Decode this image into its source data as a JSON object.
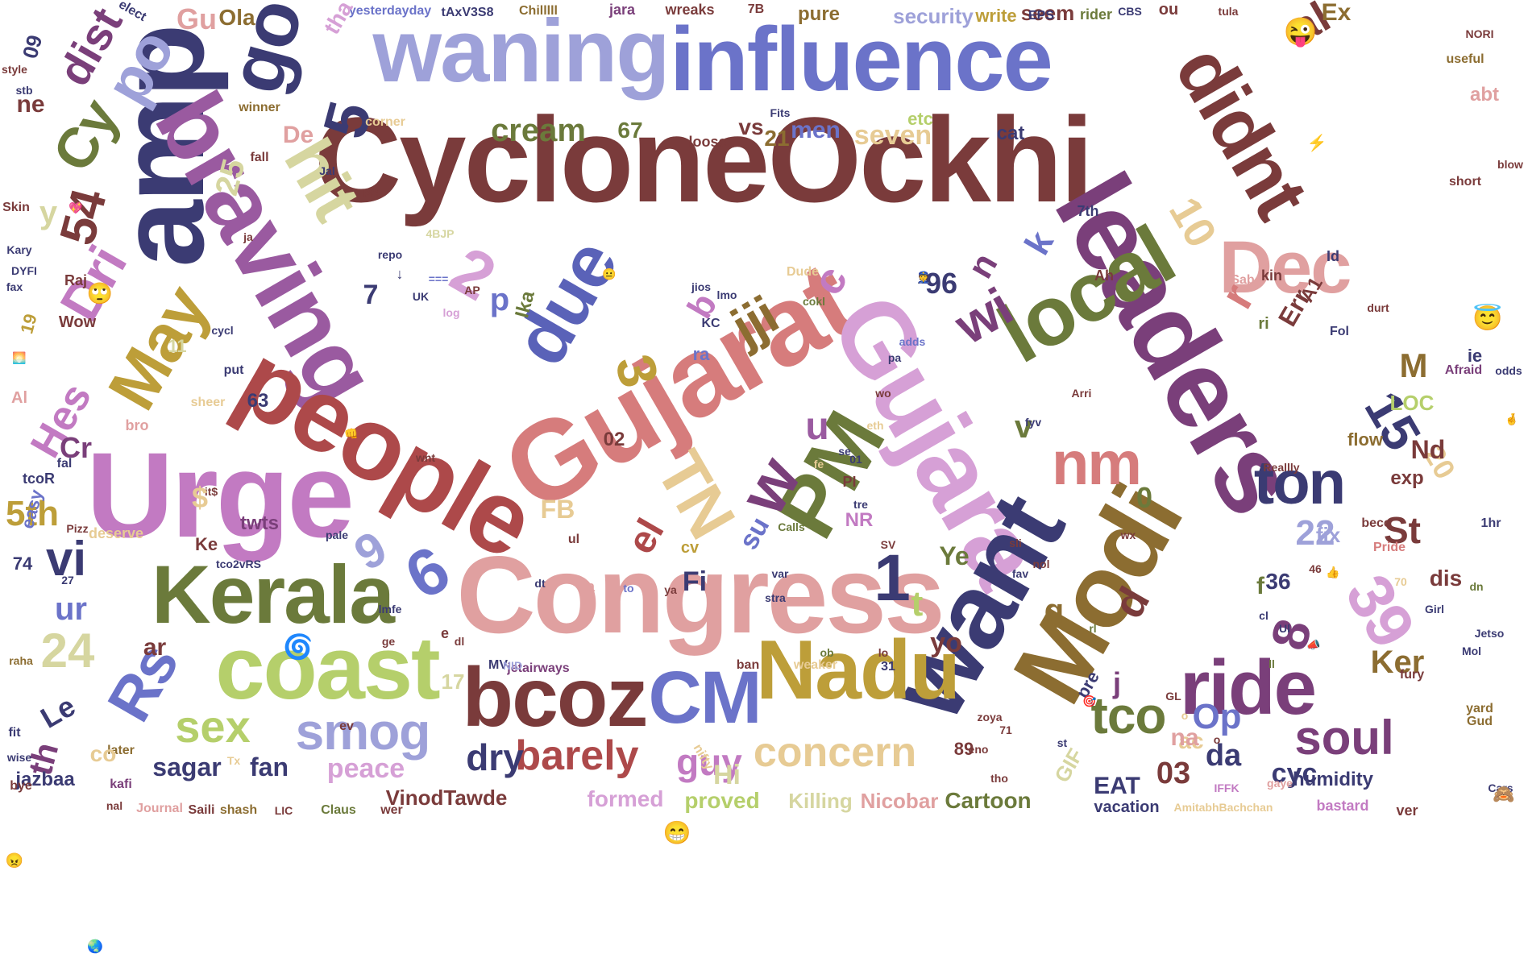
{
  "colors": {
    "maroon": "#7a3b3b",
    "navy": "#3b3b73",
    "slate": "#6b73c9",
    "lavender": "#9ea1d9",
    "rose": "#d67c7c",
    "pink": "#e0a0a0",
    "orchid": "#c27ac2",
    "violet": "#9a5aa0",
    "plum": "#7a3f7a",
    "olive": "#6b7a3b",
    "sage": "#b5cf6b",
    "mustard": "#bd9e39",
    "sand": "#e7cb94",
    "khaki": "#d6d6a0",
    "brown": "#8c6d31",
    "lilac": "#d6a0d6",
    "red": "#ad494a",
    "blue": "#5a62b8"
  },
  "words": [
    {
      "text": "CycloneOckhi",
      "color": "maroon"
    },
    {
      "text": "influence",
      "color": "slate"
    },
    {
      "text": "waning",
      "color": "lavender"
    },
    {
      "text": "amp",
      "color": "navy"
    },
    {
      "text": "go",
      "color": "navy"
    },
    {
      "text": "braving",
      "color": "violet"
    },
    {
      "text": "people",
      "color": "red"
    },
    {
      "text": "Gujarat",
      "color": "rose"
    },
    {
      "text": "Gujara",
      "color": "lilac"
    },
    {
      "text": "leaders",
      "color": "plum"
    },
    {
      "text": "local",
      "color": "olive"
    },
    {
      "text": "didnt",
      "color": "maroon"
    },
    {
      "text": "Congress",
      "color": "pink"
    },
    {
      "text": "Urge",
      "color": "orchid"
    },
    {
      "text": "Kerala",
      "color": "olive"
    },
    {
      "text": "coast",
      "color": "sage"
    },
    {
      "text": "Modi",
      "color": "brown"
    },
    {
      "text": "want",
      "color": "navy"
    },
    {
      "text": "Nadu",
      "color": "mustard"
    },
    {
      "text": "bcoz",
      "color": "maroon"
    },
    {
      "text": "CM",
      "color": "slate"
    },
    {
      "text": "ride",
      "color": "plum"
    },
    {
      "text": "PM",
      "color": "olive"
    },
    {
      "text": "TN",
      "color": "sand"
    },
    {
      "text": "due",
      "color": "blue"
    },
    {
      "text": "Dec",
      "color": "pink"
    },
    {
      "text": "May",
      "color": "mustard"
    },
    {
      "text": "hit",
      "color": "khaki"
    },
    {
      "text": "po",
      "color": "lavender"
    },
    {
      "text": "Cy",
      "color": "olive"
    },
    {
      "text": "dist",
      "color": "plum"
    },
    {
      "text": "Dri",
      "color": "orchid"
    },
    {
      "text": "Rs",
      "color": "slate"
    },
    {
      "text": "smog",
      "color": "lavender"
    },
    {
      "text": "sex",
      "color": "sage"
    },
    {
      "text": "barely",
      "color": "red"
    },
    {
      "text": "dry",
      "color": "navy"
    },
    {
      "text": "concern",
      "color": "sand"
    },
    {
      "text": "guy",
      "color": "orchid"
    },
    {
      "text": "ton",
      "color": "navy"
    },
    {
      "text": "nm",
      "color": "rose"
    },
    {
      "text": "soul",
      "color": "plum"
    },
    {
      "text": "tco",
      "color": "olive"
    },
    {
      "text": "cream",
      "color": "olive"
    },
    {
      "text": "seven",
      "color": "sand"
    },
    {
      "text": "men",
      "color": "slate"
    },
    {
      "text": "security",
      "color": "lavender"
    },
    {
      "text": "pure",
      "color": "brown"
    },
    {
      "text": "write",
      "color": "mustard"
    },
    {
      "text": "seem",
      "color": "maroon"
    },
    {
      "text": "al",
      "color": "maroon"
    },
    {
      "text": "Ex",
      "color": "brown"
    },
    {
      "text": "wreaks",
      "color": "maroon"
    },
    {
      "text": "jara",
      "color": "plum"
    },
    {
      "text": "yesterdayday",
      "color": "slate"
    },
    {
      "text": "tAxV3S8",
      "color": "navy"
    },
    {
      "text": "Chilllll",
      "color": "brown"
    },
    {
      "text": "Gu",
      "color": "pink"
    },
    {
      "text": "Ola",
      "color": "brown"
    },
    {
      "text": "tha",
      "color": "lilac"
    },
    {
      "text": "elect",
      "color": "navy"
    },
    {
      "text": "5",
      "color": "navy"
    },
    {
      "text": "2",
      "color": "lilac"
    },
    {
      "text": "p",
      "color": "slate"
    },
    {
      "text": "Ika",
      "color": "olive"
    },
    {
      "text": "3",
      "color": "mustard"
    },
    {
      "text": "jji",
      "color": "brown"
    },
    {
      "text": "c",
      "color": "orchid"
    },
    {
      "text": "r",
      "color": "rose"
    },
    {
      "text": "wi",
      "color": "plum"
    },
    {
      "text": "96",
      "color": "navy"
    },
    {
      "text": "10",
      "color": "sand"
    },
    {
      "text": "54",
      "color": "maroon"
    },
    {
      "text": "25",
      "color": "khaki"
    },
    {
      "text": "y",
      "color": "khaki"
    },
    {
      "text": "Hes",
      "color": "orchid"
    },
    {
      "text": "vi",
      "color": "navy"
    },
    {
      "text": "5th",
      "color": "mustard"
    },
    {
      "text": "ur",
      "color": "slate"
    },
    {
      "text": "24",
      "color": "khaki"
    },
    {
      "text": "ar",
      "color": "maroon"
    },
    {
      "text": "Le",
      "color": "navy"
    },
    {
      "text": "th",
      "color": "plum"
    },
    {
      "text": "sagar",
      "color": "navy"
    },
    {
      "text": "fan",
      "color": "navy"
    },
    {
      "text": "peace",
      "color": "lilac"
    },
    {
      "text": "VinodTawde",
      "color": "maroon"
    },
    {
      "text": "formed",
      "color": "lilac"
    },
    {
      "text": "proved",
      "color": "sage"
    },
    {
      "text": "Killing",
      "color": "khaki"
    },
    {
      "text": "Nicobar",
      "color": "pink"
    },
    {
      "text": "Cartoon",
      "color": "olive"
    },
    {
      "text": "EAT",
      "color": "navy"
    },
    {
      "text": "03",
      "color": "maroon"
    },
    {
      "text": "da",
      "color": "navy"
    },
    {
      "text": "cyc",
      "color": "navy"
    },
    {
      "text": "Op",
      "color": "slate"
    },
    {
      "text": "humidity",
      "color": "navy"
    },
    {
      "text": "vacation",
      "color": "navy"
    },
    {
      "text": "bastard",
      "color": "orchid"
    },
    {
      "text": "ver",
      "color": "maroon"
    },
    {
      "text": "AmitabhBachchan",
      "color": "sand"
    },
    {
      "text": "Ker",
      "color": "brown"
    },
    {
      "text": "St",
      "color": "maroon"
    },
    {
      "text": "22",
      "color": "lavender"
    },
    {
      "text": "15",
      "color": "navy"
    },
    {
      "text": "20",
      "color": "sand"
    },
    {
      "text": "39",
      "color": "lilac"
    },
    {
      "text": "8",
      "color": "plum"
    },
    {
      "text": "6",
      "color": "slate"
    },
    {
      "text": "9",
      "color": "lavender"
    },
    {
      "text": "1",
      "color": "navy"
    },
    {
      "text": "t",
      "color": "sage"
    },
    {
      "text": "w",
      "color": "plum"
    },
    {
      "text": "u",
      "color": "violet"
    },
    {
      "text": "v",
      "color": "olive"
    },
    {
      "text": "o",
      "color": "sand"
    },
    {
      "text": "g",
      "color": "brown"
    },
    {
      "text": "d",
      "color": "maroon"
    },
    {
      "text": "j",
      "color": "plum"
    },
    {
      "text": "b",
      "color": "orchid"
    },
    {
      "text": "n",
      "color": "plum"
    },
    {
      "text": "k",
      "color": "slate"
    },
    {
      "text": "el",
      "color": "red"
    },
    {
      "text": "Fi",
      "color": "navy"
    },
    {
      "text": "FB",
      "color": "sand"
    },
    {
      "text": "Hi",
      "color": "khaki"
    },
    {
      "text": "M",
      "color": "brown"
    },
    {
      "text": "Nd",
      "color": "maroon"
    },
    {
      "text": "LOC",
      "color": "sage"
    },
    {
      "text": "Err",
      "color": "maroon"
    },
    {
      "text": "A1",
      "color": "maroon"
    },
    {
      "text": "ie",
      "color": "navy"
    },
    {
      "text": "fix",
      "color": "lavender"
    },
    {
      "text": "exp",
      "color": "maroon"
    },
    {
      "text": "flow",
      "color": "brown"
    },
    {
      "text": "dis",
      "color": "maroon"
    },
    {
      "text": "36",
      "color": "navy"
    },
    {
      "text": "twts",
      "color": "plum"
    },
    {
      "text": "Cr",
      "color": "plum"
    },
    {
      "text": "De",
      "color": "pink"
    },
    {
      "text": "67",
      "color": "olive"
    },
    {
      "text": "21",
      "color": "brown"
    },
    {
      "text": "vs",
      "color": "maroon"
    },
    {
      "text": "cat",
      "color": "navy"
    },
    {
      "text": "loose",
      "color": "maroon"
    },
    {
      "text": "corner",
      "color": "sand"
    },
    {
      "text": "winner",
      "color": "brown"
    },
    {
      "text": "63",
      "color": "navy"
    },
    {
      "text": "02",
      "color": "maroon"
    },
    {
      "text": "put",
      "color": "navy"
    },
    {
      "text": "sheer",
      "color": "sand"
    },
    {
      "text": "easy",
      "color": "slate"
    },
    {
      "text": "19",
      "color": "mustard"
    },
    {
      "text": "Wow",
      "color": "maroon"
    },
    {
      "text": "Raj",
      "color": "maroon"
    },
    {
      "text": "ne",
      "color": "maroon"
    },
    {
      "text": "09",
      "color": "navy"
    },
    {
      "text": "Journal",
      "color": "pink"
    },
    {
      "text": "Saili",
      "color": "maroon"
    },
    {
      "text": "shash",
      "color": "brown"
    },
    {
      "text": "LIC",
      "color": "maroon"
    },
    {
      "text": "Claus",
      "color": "olive"
    },
    {
      "text": "wer",
      "color": "maroon"
    },
    {
      "text": "jazbaa",
      "color": "navy"
    },
    {
      "text": "deserve",
      "color": "sand"
    },
    {
      "text": "74",
      "color": "navy"
    },
    {
      "text": "Pizz",
      "color": "maroon"
    },
    {
      "text": "tcoR",
      "color": "navy"
    },
    {
      "text": "jetairways",
      "color": "plum"
    },
    {
      "text": "ban",
      "color": "maroon"
    },
    {
      "text": "weaker",
      "color": "sand"
    },
    {
      "text": "31",
      "color": "navy"
    },
    {
      "text": "MV",
      "color": "navy"
    },
    {
      "text": "yo",
      "color": "maroon"
    },
    {
      "text": "Ye",
      "color": "olive"
    },
    {
      "text": "NR",
      "color": "orchid"
    },
    {
      "text": "su",
      "color": "slate"
    },
    {
      "text": "Ke",
      "color": "maroon"
    },
    {
      "text": "tco2vRS",
      "color": "navy"
    },
    {
      "text": "nifty",
      "color": "sand"
    },
    {
      "text": "17",
      "color": "khaki"
    },
    {
      "text": "GIF",
      "color": "khaki"
    },
    {
      "text": "pre",
      "color": "navy"
    },
    {
      "text": "yard",
      "color": "brown"
    },
    {
      "text": "Gud",
      "color": "brown"
    },
    {
      "text": "1hr",
      "color": "navy"
    },
    {
      "text": "Afraid",
      "color": "plum"
    },
    {
      "text": "Reallly",
      "color": "maroon"
    },
    {
      "text": "rider",
      "color": "olive"
    },
    {
      "text": "abt",
      "color": "pink"
    },
    {
      "text": "useful",
      "color": "brown"
    },
    {
      "text": "short",
      "color": "maroon"
    },
    {
      "text": "Pride",
      "color": "rose"
    },
    {
      "text": "beco",
      "color": "maroon"
    },
    {
      "text": "kin",
      "color": "maroon"
    },
    {
      "text": "Sab",
      "color": "pink"
    },
    {
      "text": "Fol",
      "color": "navy"
    },
    {
      "text": "Ah",
      "color": "maroon"
    },
    {
      "text": "7th",
      "color": "navy"
    },
    {
      "text": "AP",
      "color": "maroon"
    },
    {
      "text": "PC",
      "color": "maroon"
    },
    {
      "text": "KC",
      "color": "navy"
    },
    {
      "text": "Dude",
      "color": "sand"
    },
    {
      "text": "7B",
      "color": "maroon"
    },
    {
      "text": "EPS",
      "color": "navy"
    },
    {
      "text": "ou",
      "color": "maroon"
    },
    {
      "text": "Al",
      "color": "pink"
    },
    {
      "text": "Skin",
      "color": "maroon"
    },
    {
      "text": "fax",
      "color": "navy"
    },
    {
      "text": "Kary",
      "color": "navy"
    },
    {
      "text": "DYFI",
      "color": "navy"
    },
    {
      "text": "ja",
      "color": "maroon"
    },
    {
      "text": "style",
      "color": "maroon"
    },
    {
      "text": "stb",
      "color": "navy"
    },
    {
      "text": "fall",
      "color": "maroon"
    },
    {
      "text": "bye",
      "color": "maroon"
    },
    {
      "text": "fit",
      "color": "navy"
    },
    {
      "text": "wise",
      "color": "navy"
    },
    {
      "text": "kafi",
      "color": "plum"
    },
    {
      "text": "raha",
      "color": "brown"
    },
    {
      "text": "Tx",
      "color": "sand"
    },
    {
      "text": "later",
      "color": "brown"
    },
    {
      "text": "nal",
      "color": "maroon"
    },
    {
      "text": "ev",
      "color": "maroon"
    },
    {
      "text": "zoya",
      "color": "maroon"
    },
    {
      "text": "eno",
      "color": "maroon"
    },
    {
      "text": "var",
      "color": "navy"
    },
    {
      "text": "stra",
      "color": "navy"
    },
    {
      "text": "NID",
      "color": "lavender"
    },
    {
      "text": "ya",
      "color": "maroon"
    },
    {
      "text": "to",
      "color": "slate"
    },
    {
      "text": "pale",
      "color": "navy"
    },
    {
      "text": "bro",
      "color": "pink"
    },
    {
      "text": "fal",
      "color": "navy"
    },
    {
      "text": "sli",
      "color": "maroon"
    },
    {
      "text": "ul",
      "color": "maroon"
    },
    {
      "text": "wx",
      "color": "maroon"
    },
    {
      "text": "Calls",
      "color": "olive"
    },
    {
      "text": "cv",
      "color": "mustard"
    },
    {
      "text": "ca",
      "color": "pink"
    },
    {
      "text": "nol",
      "color": "maroon"
    },
    {
      "text": "fav",
      "color": "navy"
    },
    {
      "text": "fury",
      "color": "maroon"
    },
    {
      "text": "gaye",
      "color": "pink"
    },
    {
      "text": "IFFK",
      "color": "orchid"
    },
    {
      "text": "wnt",
      "color": "maroon"
    },
    {
      "text": "lmo",
      "color": "navy"
    },
    {
      "text": "cokl",
      "color": "olive"
    },
    {
      "text": "jios",
      "color": "navy"
    },
    {
      "text": "ra",
      "color": "slate"
    },
    {
      "text": "log",
      "color": "lilac"
    },
    {
      "text": "cycl",
      "color": "navy"
    },
    {
      "text": "UK",
      "color": "navy"
    },
    {
      "text": "repo",
      "color": "navy"
    },
    {
      "text": "4BJP",
      "color": "khaki"
    },
    {
      "text": "Jal",
      "color": "navy"
    },
    {
      "text": "Fits",
      "color": "navy"
    },
    {
      "text": "etc",
      "color": "sage"
    },
    {
      "text": "CBS",
      "color": "navy"
    },
    {
      "text": "tula",
      "color": "maroon"
    },
    {
      "text": "NORI",
      "color": "maroon"
    },
    {
      "text": "blow",
      "color": "maroon"
    },
    {
      "text": "odds",
      "color": "navy"
    },
    {
      "text": "Jetso",
      "color": "navy"
    },
    {
      "text": "Girl",
      "color": "navy"
    },
    {
      "text": "Mol",
      "color": "navy"
    },
    {
      "text": "durt",
      "color": "maroon"
    },
    {
      "text": "adds",
      "color": "slate"
    },
    {
      "text": "pa",
      "color": "navy"
    },
    {
      "text": "wo",
      "color": "maroon"
    },
    {
      "text": "eth",
      "color": "sand"
    },
    {
      "text": "01",
      "color": "navy"
    },
    {
      "text": "tre",
      "color": "navy"
    },
    {
      "text": "se",
      "color": "navy"
    },
    {
      "text": "Cars",
      "color": "navy"
    },
    {
      "text": "lmfe",
      "color": "navy"
    },
    {
      "text": "ge",
      "color": "maroon"
    },
    {
      "text": "dl",
      "color": "maroon"
    },
    {
      "text": "it$",
      "color": "maroon"
    },
    {
      "text": "fyv",
      "color": "navy"
    },
    {
      "text": "Arri",
      "color": "maroon"
    },
    {
      "text": "70",
      "color": "sand"
    },
    {
      "text": "tho",
      "color": "maroon"
    },
    {
      "text": "71",
      "color": "maroon"
    },
    {
      "text": "89",
      "color": "maroon"
    },
    {
      "text": "46",
      "color": "maroon"
    },
    {
      "text": "11",
      "color": "khaki"
    },
    {
      "text": "===",
      "color": "slate"
    },
    {
      "text": "↓",
      "color": "navy"
    },
    {
      "text": "dn",
      "color": "olive"
    },
    {
      "text": "lo",
      "color": "maroon"
    },
    {
      "text": "ob",
      "color": "olive"
    },
    {
      "text": "dt",
      "color": "navy"
    },
    {
      "text": "co",
      "color": "sand"
    },
    {
      "text": "$",
      "color": "sand"
    },
    {
      "text": "7",
      "color": "navy"
    },
    {
      "text": "e",
      "color": "maroon"
    },
    {
      "text": "Id",
      "color": "navy"
    },
    {
      "text": "ri",
      "color": "olive"
    },
    {
      "text": "ac",
      "color": "sand"
    },
    {
      "text": "rl",
      "color": "olive"
    },
    {
      "text": "fe",
      "color": "sand"
    },
    {
      "text": "st",
      "color": "navy"
    },
    {
      "text": "SV",
      "color": "maroon"
    },
    {
      "text": "PI",
      "color": "maroon"
    },
    {
      "text": "o",
      "color": "maroon"
    },
    {
      "text": "f",
      "color": "olive"
    },
    {
      "text": "cl",
      "color": "navy"
    },
    {
      "text": "Ul",
      "color": "navy"
    },
    {
      "text": "ll",
      "color": "olive"
    },
    {
      "text": "0",
      "color": "olive"
    },
    {
      "text": "27",
      "color": "navy"
    },
    {
      "text": "GL",
      "color": "maroon"
    },
    {
      "text": "na",
      "color": "pink"
    }
  ],
  "icons": [
    {
      "name": "winking-face-with-tongue-icon",
      "glyph": "😜"
    },
    {
      "name": "rolling-eyes-face-icon",
      "glyph": "🙄"
    },
    {
      "name": "smiling-face-with-halo-icon",
      "glyph": "😇"
    },
    {
      "name": "grinning-face-icon",
      "glyph": "😁"
    },
    {
      "name": "cyclone-icon",
      "glyph": "🌀"
    },
    {
      "name": "high-voltage-icon",
      "glyph": "⚡"
    },
    {
      "name": "sparkling-heart-icon",
      "glyph": "💖"
    },
    {
      "name": "see-no-evil-monkey-icon",
      "glyph": "🙈"
    },
    {
      "name": "angry-face-icon",
      "glyph": "😠"
    },
    {
      "name": "globe-icon",
      "glyph": "🌏"
    },
    {
      "name": "oncoming-fist-icon",
      "glyph": "👊"
    },
    {
      "name": "crossed-fingers-icon",
      "glyph": "🤞"
    },
    {
      "name": "neutral-face-icon",
      "glyph": "😐"
    },
    {
      "name": "police-officer-icon",
      "glyph": "👮"
    },
    {
      "name": "thumbs-up-icon",
      "glyph": "👍"
    },
    {
      "name": "sun-icon",
      "glyph": "🌅"
    },
    {
      "name": "megaphone-icon",
      "glyph": "📣"
    },
    {
      "name": "direct-hit-icon",
      "glyph": "🎯"
    }
  ]
}
